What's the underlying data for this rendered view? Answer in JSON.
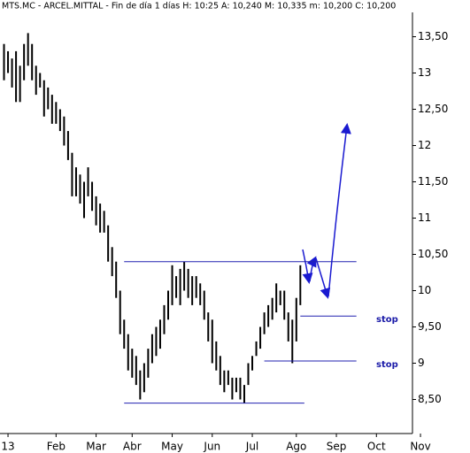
{
  "chart_data": {
    "type": "ohlc",
    "title": "MTS.MC - ARCEL.MITTAL - Fin de día 1 días H: 10:25  A: 10,240  M: 10,335  m: 10,200  C: 10,200",
    "color": "#000000",
    "high": [
      13.4,
      13.3,
      13.2,
      13.3,
      13.1,
      13.4,
      13.55,
      13.4,
      13.1,
      13.0,
      12.9,
      12.8,
      12.7,
      12.6,
      12.5,
      12.4,
      12.2,
      11.9,
      11.7,
      11.6,
      11.5,
      11.7,
      11.5,
      11.3,
      11.2,
      11.1,
      10.9,
      10.6,
      10.4,
      10.0,
      9.6,
      9.4,
      9.2,
      9.1,
      8.9,
      9.0,
      9.2,
      9.4,
      9.5,
      9.6,
      9.8,
      10.0,
      10.35,
      10.2,
      10.3,
      10.4,
      10.3,
      10.2,
      10.2,
      10.1,
      10.0,
      9.7,
      9.6,
      9.3,
      9.1,
      8.9,
      8.9,
      8.8,
      8.8,
      8.8,
      8.7,
      9.0,
      9.1,
      9.3,
      9.5,
      9.7,
      9.8,
      9.9,
      10.1,
      10.0,
      10.0,
      9.7,
      9.6,
      9.9,
      10.35
    ],
    "low": [
      12.9,
      13.0,
      12.8,
      12.6,
      12.6,
      12.9,
      13.1,
      12.9,
      12.7,
      12.8,
      12.4,
      12.5,
      12.3,
      12.3,
      12.2,
      12.0,
      11.8,
      11.3,
      11.3,
      11.2,
      11.0,
      11.3,
      11.1,
      10.9,
      10.8,
      10.8,
      10.4,
      10.2,
      9.9,
      9.4,
      9.2,
      8.9,
      8.8,
      8.7,
      8.5,
      8.6,
      8.8,
      9.0,
      9.1,
      9.2,
      9.4,
      9.6,
      9.8,
      9.9,
      9.8,
      10.0,
      9.9,
      9.8,
      9.9,
      9.8,
      9.6,
      9.3,
      9.0,
      8.9,
      8.7,
      8.6,
      8.7,
      8.5,
      8.6,
      8.5,
      8.45,
      8.7,
      8.9,
      9.1,
      9.2,
      9.4,
      9.5,
      9.6,
      9.7,
      9.8,
      9.6,
      9.3,
      9.0,
      9.3,
      9.8
    ],
    "xlim": [
      -1,
      102
    ],
    "xticks": [
      {
        "value": 1,
        "label": "13"
      },
      {
        "value": 13,
        "label": "Feb"
      },
      {
        "value": 23,
        "label": "Mar"
      },
      {
        "value": 32,
        "label": "Abr"
      },
      {
        "value": 42,
        "label": "May"
      },
      {
        "value": 52,
        "label": "Jun"
      },
      {
        "value": 62,
        "label": "Jul"
      },
      {
        "value": 73,
        "label": "Ago"
      },
      {
        "value": 83,
        "label": "Sep"
      },
      {
        "value": 93,
        "label": "Oct"
      },
      {
        "value": 104,
        "label": "Nov"
      }
    ],
    "ylim": [
      8.25,
      13.75
    ],
    "yticks": [
      {
        "value": 13.5,
        "label": "13,50"
      },
      13,
      {
        "value": 12.5,
        "label": "12,50"
      },
      12,
      {
        "value": 11.5,
        "label": "11,50"
      },
      11,
      {
        "value": 10.5,
        "label": "10,50"
      },
      10,
      {
        "value": 9.5,
        "label": "9,50"
      },
      9,
      {
        "value": 8.5,
        "label": "8,50"
      }
    ],
    "levels": [
      {
        "value": 10.4,
        "from": 30,
        "to": 88,
        "color": "#2020b0"
      },
      {
        "value": 8.45,
        "from": 30,
        "to": 75,
        "color": "#2020b0"
      },
      {
        "value": 9.65,
        "from": 74,
        "to": 88,
        "color": "#2020b0",
        "label": "stop"
      },
      {
        "value": 9.03,
        "from": 65,
        "to": 88,
        "color": "#2020b0",
        "label": "stop"
      }
    ]
  }
}
